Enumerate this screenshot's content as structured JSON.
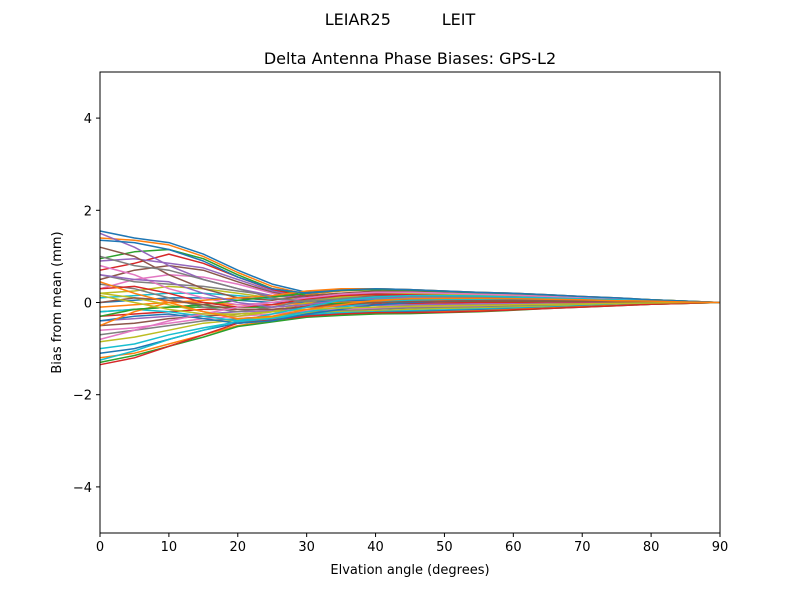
{
  "chart_data": {
    "type": "line",
    "suptitle": "LEIAR25          LEIT",
    "title": "Delta Antenna Phase Biases: GPS-L2",
    "xlabel": "Elvation angle (degrees)",
    "ylabel": "Bias from mean (mm)",
    "xlim": [
      0,
      90
    ],
    "ylim": [
      -5,
      5
    ],
    "xticks": [
      0,
      10,
      20,
      30,
      40,
      50,
      60,
      70,
      80,
      90
    ],
    "yticks": [
      -4,
      -2,
      0,
      2,
      4
    ],
    "ytick_labels": [
      "−4",
      "−2",
      "0",
      "2",
      "4"
    ],
    "grid": false,
    "legend": "none",
    "x": [
      0,
      5,
      10,
      15,
      20,
      25,
      30,
      35,
      40,
      45,
      50,
      55,
      60,
      65,
      70,
      75,
      80,
      85,
      90
    ],
    "palette": [
      "#1f77b4",
      "#ff7f0e",
      "#2ca02c",
      "#d62728",
      "#9467bd",
      "#8c564b",
      "#e377c2",
      "#7f7f7f",
      "#bcbd22",
      "#17becf"
    ],
    "series": [
      {
        "values": [
          1.55,
          1.4,
          1.3,
          1.05,
          0.7,
          0.4,
          0.22,
          0.28,
          0.3,
          0.28,
          0.25,
          0.22,
          0.2,
          0.17,
          0.13,
          0.1,
          0.06,
          0.03,
          0.0
        ]
      },
      {
        "values": [
          1.4,
          1.35,
          1.25,
          1.0,
          0.65,
          0.35,
          0.18,
          0.25,
          0.28,
          0.27,
          0.24,
          0.21,
          0.19,
          0.16,
          0.12,
          0.09,
          0.06,
          0.03,
          0.0
        ]
      },
      {
        "values": [
          0.95,
          1.1,
          1.15,
          0.95,
          0.6,
          0.3,
          0.15,
          0.2,
          0.22,
          0.22,
          0.2,
          0.18,
          0.16,
          0.13,
          0.1,
          0.08,
          0.05,
          0.02,
          0.0
        ]
      },
      {
        "values": [
          0.7,
          0.85,
          1.05,
          0.85,
          0.55,
          0.28,
          0.12,
          0.18,
          0.2,
          0.2,
          0.18,
          0.16,
          0.14,
          0.12,
          0.09,
          0.07,
          0.04,
          0.02,
          0.0
        ]
      },
      {
        "values": [
          0.9,
          0.95,
          0.85,
          0.75,
          0.5,
          0.25,
          0.1,
          0.15,
          0.18,
          0.18,
          0.16,
          0.15,
          0.13,
          0.11,
          0.09,
          0.06,
          0.04,
          0.02,
          0.0
        ]
      },
      {
        "values": [
          0.5,
          0.7,
          0.8,
          0.7,
          0.45,
          0.22,
          0.08,
          0.12,
          0.15,
          0.15,
          0.14,
          0.13,
          0.12,
          0.1,
          0.08,
          0.06,
          0.04,
          0.02,
          0.0
        ]
      },
      {
        "values": [
          0.3,
          0.5,
          0.6,
          0.55,
          0.4,
          0.2,
          0.05,
          0.1,
          0.12,
          0.13,
          0.12,
          0.11,
          0.1,
          0.09,
          0.07,
          0.05,
          0.03,
          0.01,
          0.0
        ]
      },
      {
        "values": [
          0.6,
          0.45,
          0.4,
          0.35,
          0.25,
          0.15,
          0.08,
          0.1,
          0.12,
          0.12,
          0.11,
          0.1,
          0.09,
          0.08,
          0.06,
          0.05,
          0.03,
          0.01,
          0.0
        ]
      },
      {
        "values": [
          0.2,
          0.25,
          0.35,
          0.3,
          0.2,
          0.1,
          0.05,
          0.08,
          0.1,
          0.1,
          0.1,
          0.09,
          0.08,
          0.07,
          0.06,
          0.04,
          0.03,
          0.01,
          0.0
        ]
      },
      {
        "values": [
          0.1,
          0.15,
          0.2,
          0.2,
          0.15,
          0.08,
          0.02,
          0.05,
          0.08,
          0.08,
          0.08,
          0.07,
          0.07,
          0.06,
          0.05,
          0.04,
          0.02,
          0.01,
          0.0
        ]
      },
      {
        "values": [
          0.0,
          0.05,
          0.1,
          0.1,
          0.05,
          0.0,
          0.0,
          0.03,
          0.05,
          0.06,
          0.06,
          0.06,
          0.05,
          0.05,
          0.04,
          0.03,
          0.02,
          0.01,
          0.0
        ]
      },
      {
        "values": [
          -0.1,
          -0.05,
          0.0,
          0.0,
          -0.05,
          -0.05,
          -0.02,
          0.0,
          0.03,
          0.04,
          0.04,
          0.04,
          0.04,
          0.03,
          0.03,
          0.02,
          0.01,
          0.0,
          0.0
        ]
      },
      {
        "values": [
          -0.2,
          -0.15,
          -0.1,
          -0.1,
          -0.1,
          -0.1,
          -0.05,
          -0.02,
          0.0,
          0.02,
          0.02,
          0.02,
          0.02,
          0.02,
          0.02,
          0.01,
          0.01,
          0.0,
          0.0
        ]
      },
      {
        "values": [
          -0.3,
          -0.25,
          -0.2,
          -0.15,
          -0.15,
          -0.15,
          -0.08,
          -0.05,
          -0.03,
          -0.02,
          -0.01,
          0.0,
          0.0,
          0.0,
          0.0,
          0.0,
          0.0,
          0.0,
          0.0
        ]
      },
      {
        "values": [
          -0.4,
          -0.35,
          -0.3,
          -0.25,
          -0.2,
          -0.18,
          -0.1,
          -0.08,
          -0.06,
          -0.05,
          -0.04,
          -0.03,
          -0.03,
          -0.02,
          -0.02,
          -0.01,
          -0.01,
          0.0,
          0.0
        ]
      },
      {
        "values": [
          -0.5,
          -0.45,
          -0.35,
          -0.3,
          -0.25,
          -0.2,
          -0.15,
          -0.12,
          -0.1,
          -0.08,
          -0.07,
          -0.06,
          -0.05,
          -0.04,
          -0.03,
          -0.02,
          -0.01,
          0.0,
          0.0
        ]
      },
      {
        "values": [
          -0.6,
          -0.55,
          -0.45,
          -0.35,
          -0.3,
          -0.25,
          -0.18,
          -0.15,
          -0.12,
          -0.1,
          -0.09,
          -0.08,
          -0.07,
          -0.05,
          -0.04,
          -0.03,
          -0.02,
          -0.01,
          0.0
        ]
      },
      {
        "values": [
          -0.7,
          -0.6,
          -0.5,
          -0.4,
          -0.35,
          -0.3,
          -0.2,
          -0.18,
          -0.15,
          -0.12,
          -0.11,
          -0.1,
          -0.08,
          -0.06,
          -0.05,
          -0.03,
          -0.02,
          -0.01,
          0.0
        ]
      },
      {
        "values": [
          -0.85,
          -0.75,
          -0.6,
          -0.45,
          -0.38,
          -0.32,
          -0.22,
          -0.2,
          -0.18,
          -0.15,
          -0.13,
          -0.12,
          -0.1,
          -0.08,
          -0.06,
          -0.04,
          -0.03,
          -0.01,
          0.0
        ]
      },
      {
        "values": [
          -1.0,
          -0.9,
          -0.7,
          -0.55,
          -0.42,
          -0.35,
          -0.25,
          -0.22,
          -0.2,
          -0.18,
          -0.16,
          -0.14,
          -0.12,
          -0.1,
          -0.07,
          -0.05,
          -0.03,
          -0.01,
          0.0
        ]
      },
      {
        "values": [
          -1.1,
          -1.0,
          -0.8,
          -0.6,
          -0.45,
          -0.38,
          -0.28,
          -0.25,
          -0.22,
          -0.2,
          -0.18,
          -0.16,
          -0.14,
          -0.11,
          -0.08,
          -0.06,
          -0.04,
          -0.02,
          0.0
        ]
      },
      {
        "values": [
          -1.2,
          -1.1,
          -0.9,
          -0.7,
          -0.5,
          -0.4,
          -0.3,
          -0.27,
          -0.24,
          -0.22,
          -0.2,
          -0.18,
          -0.15,
          -0.12,
          -0.09,
          -0.06,
          -0.04,
          -0.02,
          0.0
        ]
      },
      {
        "values": [
          -1.3,
          -1.15,
          -0.95,
          -0.75,
          -0.52,
          -0.42,
          -0.32,
          -0.28,
          -0.25,
          -0.24,
          -0.22,
          -0.2,
          -0.17,
          -0.13,
          -0.1,
          -0.07,
          -0.04,
          -0.02,
          0.0
        ]
      },
      {
        "values": [
          -1.35,
          -1.2,
          -0.95,
          -0.7,
          -0.45,
          -0.38,
          -0.3,
          -0.25,
          -0.22,
          -0.22,
          -0.21,
          -0.19,
          -0.16,
          -0.13,
          -0.1,
          -0.07,
          -0.04,
          -0.02,
          0.0
        ]
      },
      {
        "values": [
          1.5,
          1.2,
          0.8,
          0.5,
          0.3,
          0.15,
          0.1,
          0.15,
          0.2,
          0.22,
          0.2,
          0.18,
          0.16,
          0.14,
          0.11,
          0.08,
          0.05,
          0.02,
          0.0
        ]
      },
      {
        "values": [
          1.2,
          1.0,
          0.6,
          0.3,
          0.1,
          0.05,
          0.15,
          0.2,
          0.25,
          0.24,
          0.22,
          0.2,
          0.18,
          0.15,
          0.12,
          0.08,
          0.05,
          0.02,
          0.0
        ]
      },
      {
        "values": [
          0.8,
          0.6,
          0.3,
          0.1,
          -0.05,
          0.0,
          0.1,
          0.18,
          0.22,
          0.22,
          0.2,
          0.18,
          0.16,
          0.14,
          0.11,
          0.08,
          0.05,
          0.02,
          0.0
        ]
      },
      {
        "values": [
          0.4,
          0.3,
          0.1,
          -0.1,
          -0.2,
          -0.1,
          0.05,
          0.15,
          0.2,
          0.2,
          0.19,
          0.17,
          0.15,
          0.13,
          0.1,
          0.07,
          0.05,
          0.02,
          0.0
        ]
      },
      {
        "values": [
          0.2,
          0.1,
          -0.05,
          -0.2,
          -0.3,
          -0.2,
          0.0,
          0.12,
          0.18,
          0.19,
          0.18,
          0.16,
          0.14,
          0.12,
          0.09,
          0.07,
          0.04,
          0.02,
          0.0
        ]
      },
      {
        "values": [
          -0.2,
          -0.15,
          -0.2,
          -0.3,
          -0.4,
          -0.35,
          -0.2,
          -0.1,
          0.0,
          0.05,
          0.07,
          0.07,
          0.07,
          0.06,
          0.05,
          0.04,
          0.03,
          0.01,
          0.0
        ]
      },
      {
        "values": [
          -0.4,
          -0.3,
          -0.25,
          -0.35,
          -0.45,
          -0.4,
          -0.25,
          -0.15,
          -0.05,
          0.0,
          0.03,
          0.04,
          0.05,
          0.05,
          0.04,
          0.03,
          0.02,
          0.01,
          0.0
        ]
      },
      {
        "values": [
          -0.5,
          -0.2,
          0.0,
          0.05,
          0.1,
          0.15,
          0.25,
          0.3,
          0.3,
          0.28,
          0.25,
          0.22,
          0.2,
          0.17,
          0.13,
          0.1,
          0.06,
          0.03,
          0.0
        ]
      },
      {
        "values": [
          -0.3,
          -0.15,
          -0.1,
          -0.05,
          0.05,
          0.12,
          0.2,
          0.26,
          0.28,
          0.27,
          0.24,
          0.21,
          0.19,
          0.16,
          0.12,
          0.09,
          0.06,
          0.03,
          0.0
        ]
      },
      {
        "values": [
          0.3,
          0.35,
          0.2,
          0.0,
          -0.1,
          -0.05,
          0.08,
          0.15,
          0.18,
          0.17,
          0.15,
          0.13,
          0.12,
          0.1,
          0.08,
          0.06,
          0.04,
          0.02,
          0.0
        ]
      },
      {
        "values": [
          0.6,
          0.5,
          0.45,
          0.2,
          0.0,
          -0.1,
          -0.05,
          0.05,
          0.1,
          0.12,
          0.12,
          0.11,
          0.1,
          0.09,
          0.07,
          0.05,
          0.03,
          0.01,
          0.0
        ]
      },
      {
        "values": [
          0.0,
          0.1,
          0.05,
          -0.05,
          -0.15,
          -0.15,
          -0.1,
          -0.05,
          0.0,
          0.02,
          0.03,
          0.04,
          0.04,
          0.04,
          0.03,
          0.02,
          0.02,
          0.01,
          0.0
        ]
      },
      {
        "values": [
          -0.8,
          -0.6,
          -0.4,
          -0.25,
          -0.1,
          0.0,
          0.1,
          0.18,
          0.22,
          0.22,
          0.2,
          0.18,
          0.16,
          0.13,
          0.1,
          0.07,
          0.05,
          0.02,
          0.0
        ]
      },
      {
        "values": [
          1.0,
          0.8,
          0.7,
          0.5,
          0.3,
          0.1,
          0.02,
          0.08,
          0.12,
          0.14,
          0.13,
          0.12,
          0.11,
          0.09,
          0.07,
          0.05,
          0.03,
          0.01,
          0.0
        ]
      },
      {
        "values": [
          0.15,
          0.0,
          -0.15,
          -0.25,
          -0.25,
          -0.2,
          -0.15,
          -0.12,
          -0.1,
          -0.08,
          -0.07,
          -0.06,
          -0.05,
          -0.04,
          -0.03,
          -0.02,
          -0.01,
          0.0,
          0.0
        ]
      },
      {
        "values": [
          -1.25,
          -1.05,
          -0.8,
          -0.6,
          -0.4,
          -0.25,
          -0.1,
          0.05,
          0.12,
          0.15,
          0.15,
          0.14,
          0.12,
          0.1,
          0.08,
          0.06,
          0.04,
          0.02,
          0.0
        ]
      },
      {
        "values": [
          1.35,
          1.3,
          1.15,
          0.9,
          0.55,
          0.3,
          0.2,
          0.27,
          0.3,
          0.28,
          0.25,
          0.22,
          0.2,
          0.17,
          0.13,
          0.1,
          0.06,
          0.03,
          0.0
        ]
      },
      {
        "values": [
          0.45,
          0.2,
          0.0,
          -0.2,
          -0.35,
          -0.3,
          -0.15,
          -0.05,
          0.05,
          0.08,
          0.09,
          0.09,
          0.08,
          0.07,
          0.06,
          0.04,
          0.03,
          0.01,
          0.0
        ]
      }
    ]
  }
}
